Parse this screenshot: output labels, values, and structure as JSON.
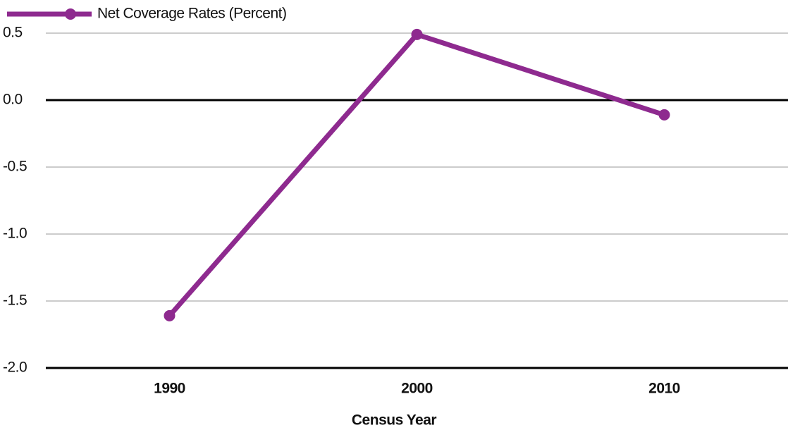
{
  "chart_data": {
    "type": "line",
    "x_label": "Census Year",
    "categories": [
      "1990",
      "2000",
      "2010"
    ],
    "series": [
      {
        "name": "Net Coverage Rates (Percent)",
        "color": "#8e2a8f",
        "values": [
          -1.61,
          0.49,
          -0.11
        ]
      }
    ],
    "ylim": [
      -2.0,
      0.5
    ],
    "yticks": [
      0.5,
      {
        "value": 0,
        "label": "0.0"
      },
      -0.5,
      {
        "value": -1,
        "label": "-1.0"
      },
      -1.5,
      {
        "value": -2,
        "label": "-2.0"
      }
    ],
    "grid": true
  }
}
